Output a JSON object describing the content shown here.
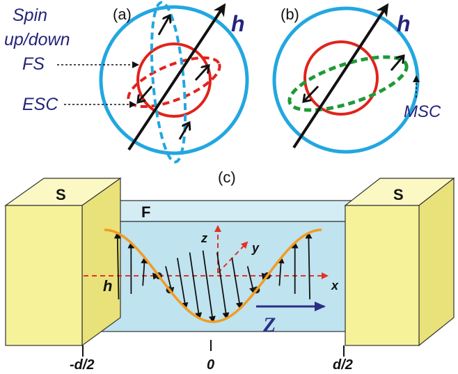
{
  "panel_a": {
    "label": "(a)",
    "field_label": "h",
    "spin_label_line1": "Spin",
    "spin_label_line2": "up/down",
    "spin_label_line3": "FS",
    "esc_label": "ESC"
  },
  "panel_b": {
    "label": "(b)",
    "field_label": "h",
    "msc_label": "MSC"
  },
  "panel_c": {
    "label": "(c)",
    "left_electrode": "S",
    "right_electrode": "S",
    "ferromagnet": "F",
    "axis_x": "x",
    "axis_y": "y",
    "axis_z": "z",
    "field_label": "h",
    "direction_label": "Z",
    "tick_left": "-d/2",
    "tick_center": "0",
    "tick_right": "d/2"
  },
  "colors": {
    "spin_fs": "#22a7e0",
    "fs_inner": "#e0231c",
    "esc": "#e0231c",
    "msc": "#1f9a38",
    "label_navy": "#25237a",
    "slab": "#bfe3ef",
    "electrode": "#f6f29a",
    "wave": "#f39b22",
    "axis_red": "#e53126",
    "z_arrow": "#2b2e86"
  }
}
